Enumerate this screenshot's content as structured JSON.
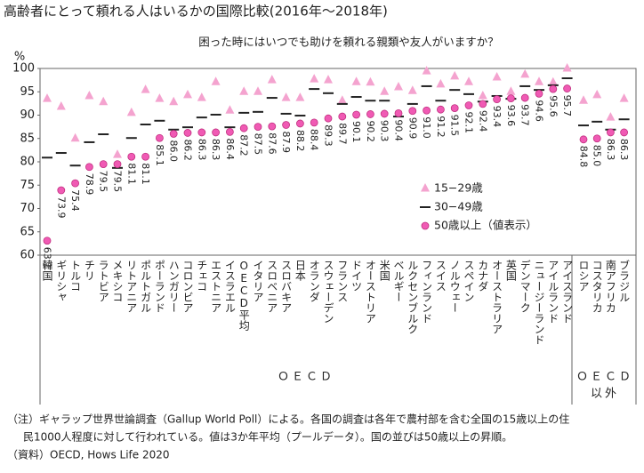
{
  "chart_data": {
    "type": "dot",
    "title": "高齢者にとって頼れる人はいるかの国際比較(2016年～2018年)",
    "subtitle": "困った時にはいつでも助けを頼れる親類や友人がいますか？",
    "y_unit": "%",
    "categories": [
      "韓国",
      "ギリシャ",
      "トルコ",
      "チリ",
      "ラトビア",
      "メキシコ",
      "リトアニア",
      "ポルトガル",
      "ポーランド",
      "ハンガリー",
      "コロンビア",
      "チェコ",
      "エストニア",
      "イスラエル",
      "OECD平均",
      "イタリア",
      "スロベニア",
      "スロバキア",
      "日本",
      "オランダ",
      "スウェーデン",
      "フランス",
      "ドイツ",
      "オーストリア",
      "米国",
      "ベルギー",
      "ルクセンブルク",
      "フィンランド",
      "スイス",
      "ノルウェー",
      "スペイン",
      "カナダ",
      "オーストラリア",
      "英国",
      "デンマーク",
      "ニュージーランド",
      "アイルランド",
      "アイスランド",
      "ロシア",
      "コスタリカ",
      "南アフリカ",
      "ブラジル"
    ],
    "series": [
      {
        "name": "15−29歳",
        "marker": "triangle",
        "color": "#f4a3cf",
        "values": [
          93.5,
          91.8,
          85.0,
          94.1,
          92.8,
          81.5,
          90.5,
          95.4,
          93.5,
          92.8,
          94.3,
          93.7,
          97.1,
          91.0,
          95.0,
          95.0,
          97.5,
          93.7,
          93.7,
          97.7,
          97.5,
          93.1,
          97.1,
          97.0,
          95.0,
          96.0,
          95.2,
          99.4,
          96.6,
          98.3,
          97.1,
          94.1,
          98.1,
          95.0,
          98.7,
          97.1,
          97.0,
          100.0,
          93.1,
          94.3,
          89.5,
          93.5
        ]
      },
      {
        "name": "30−49歳",
        "marker": "dash",
        "color": "#222222",
        "values": [
          80.9,
          81.9,
          79.2,
          84.2,
          85.9,
          78.7,
          85.1,
          88.0,
          88.8,
          86.9,
          87.4,
          89.5,
          90.1,
          87.4,
          90.5,
          90.7,
          93.7,
          90.3,
          89.9,
          95.6,
          94.7,
          92.4,
          93.9,
          93.1,
          93.1,
          89.7,
          92.4,
          96.2,
          93.1,
          95.4,
          94.5,
          92.9,
          94.1,
          93.5,
          96.2,
          95.4,
          96.4,
          97.9,
          87.8,
          88.6,
          86.9,
          89.1
        ]
      },
      {
        "name": "50歳以上（値表示）",
        "marker": "circle",
        "color": "#f05ab4",
        "values": [
          63.1,
          73.9,
          75.4,
          78.9,
          79.5,
          79.5,
          81.1,
          81.1,
          85.1,
          86.0,
          86.2,
          86.3,
          86.3,
          86.4,
          87.2,
          87.5,
          87.6,
          87.9,
          88.2,
          88.4,
          89.3,
          89.7,
          90.1,
          90.2,
          90.3,
          90.4,
          90.9,
          91.0,
          91.2,
          91.5,
          92.1,
          92.4,
          93.4,
          93.6,
          93.7,
          94.6,
          95.6,
          95.7,
          84.8,
          85.0,
          86.3,
          86.3
        ],
        "value_labels": [
          "63.1",
          "73.9",
          "75.4",
          "78.9",
          "79.5",
          "79.5",
          "81.1",
          "81.1",
          "85.1",
          "86.0",
          "86.2",
          "86.3",
          "86.3",
          "86.4",
          "87.2",
          "87.5",
          "87.6",
          "87.9",
          "88.2",
          "88.4",
          "89.3",
          "89.7",
          "90.1",
          "90.2",
          "90.3",
          "90.4",
          "90.9",
          "91.0",
          "91.2",
          "91.5",
          "92.1",
          "92.4",
          "93.4",
          "93.6",
          "93.7",
          "94.6",
          "95.6",
          "95.7",
          "84.8",
          "85.0",
          "86.3",
          "86.3"
        ]
      }
    ],
    "group_labels": [
      [
        "ＯＥＣＤ"
      ],
      [
        "ＯＥＣＤ",
        "以外"
      ]
    ],
    "ylim": [
      60,
      100
    ],
    "yticks": [
      60,
      65,
      70,
      75,
      80,
      85,
      90,
      95,
      100
    ],
    "grid": false,
    "notes": [
      "（注）ギャラップ世界世論調査（Gallup World Poll）による。各国の調査は各年で農村部を含む全国の15歳以上の住",
      "民1000人程度に対して行われている。値は3か年平均（プールデータ）。国の並びは50歳以上の昇順。",
      "（資料）OECD, Hows Life 2020"
    ]
  }
}
